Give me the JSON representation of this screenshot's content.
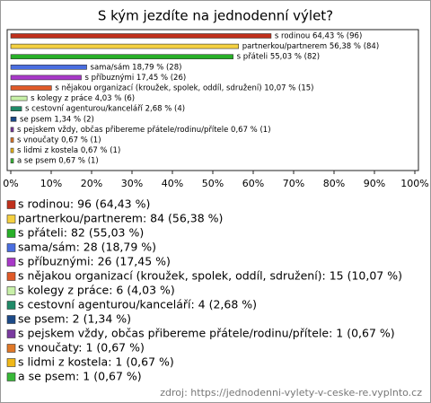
{
  "chart_data": {
    "type": "hbar",
    "title": "S kým jezdíte na jednodenní výlet?",
    "categories": [
      "s rodinou",
      "partnerkou/partnerem",
      "s přáteli",
      "sama/sám",
      "s příbuznými",
      "s nějakou organizací (kroužek, spolek, oddíl, sdružení)",
      "s kolegy z práce",
      "s cestovní agenturou/kanceláří",
      "se psem",
      "s pejskem vždy, občas přibereme přátele/rodinu/přítele",
      "s vnoučaty",
      "s lidmi z kostela",
      "a se psem"
    ],
    "values": [
      64.43,
      56.38,
      55.03,
      18.79,
      17.45,
      10.07,
      4.03,
      2.68,
      1.34,
      0.67,
      0.67,
      0.67,
      0.67
    ],
    "value_labels": [
      "s rodinou 64,43 % (96)",
      "partnerkou/partnerem 56,38 % (84)",
      "s přáteli 55,03 % (82)",
      "sama/sám 18,79 % (28)",
      "s příbuznými 17,45 % (26)",
      "s nějakou organizací (kroužek, spolek, oddíl, sdružení) 10,07 % (15)",
      "s kolegy z práce 4,03 % (6)",
      "s cestovní agenturou/kanceláří 2,68 % (4)",
      "se psem 1,34 % (2)",
      "s pejskem vždy, občas přibereme přátele/rodinu/přítele 0,67 % (1)",
      "s vnoučaty 0,67 % (1)",
      "s lidmi z kostela 0,67 % (1)",
      "a se psem 0,67 % (1)"
    ],
    "legend_labels": [
      "s rodinou: 96 (64,43 %)",
      "partnerkou/partnerem: 84 (56,38 %)",
      "s přáteli: 82 (55,03 %)",
      "sama/sám: 28 (18,79 %)",
      "s příbuznými: 26 (17,45 %)",
      "s nějakou organizací (kroužek, spolek, oddíl, sdružení): 15 (10,07 %)",
      "s kolegy z práce: 6 (4,03 %)",
      "s cestovní agenturou/kanceláří: 4 (2,68 %)",
      "se psem: 2 (1,34 %)",
      "s pejskem vždy, občas přibereme přátele/rodinu/přítele: 1 (0,67 %)",
      "s vnoučaty: 1 (0,67 %)",
      "s lidmi z kostela: 1 (0,67 %)",
      "a se psem: 1 (0,67 %)"
    ],
    "colors": [
      "#c0301c",
      "#f4d040",
      "#28b028",
      "#4a6ee0",
      "#a838c8",
      "#e05a28",
      "#c8f0a8",
      "#208a68",
      "#1c4a88",
      "#7a3aa0",
      "#e07828",
      "#f0b818",
      "#38b838"
    ],
    "xlim": [
      0,
      100
    ],
    "xticks": [
      {
        "value": 0,
        "label": "0%"
      },
      {
        "value": 10,
        "label": "10%"
      },
      {
        "value": 20,
        "label": "20%"
      },
      {
        "value": 30,
        "label": "30%"
      },
      {
        "value": 40,
        "label": "40%"
      },
      {
        "value": 50,
        "label": "50%"
      },
      {
        "value": 60,
        "label": "60%"
      },
      {
        "value": 70,
        "label": "70%"
      },
      {
        "value": 80,
        "label": "80%"
      },
      {
        "value": 90,
        "label": "90%"
      },
      {
        "value": 100,
        "label": "100%"
      }
    ],
    "source": "zdroj: https://jednodenni-vylety-v-ceske-re.vyplnto.cz"
  }
}
